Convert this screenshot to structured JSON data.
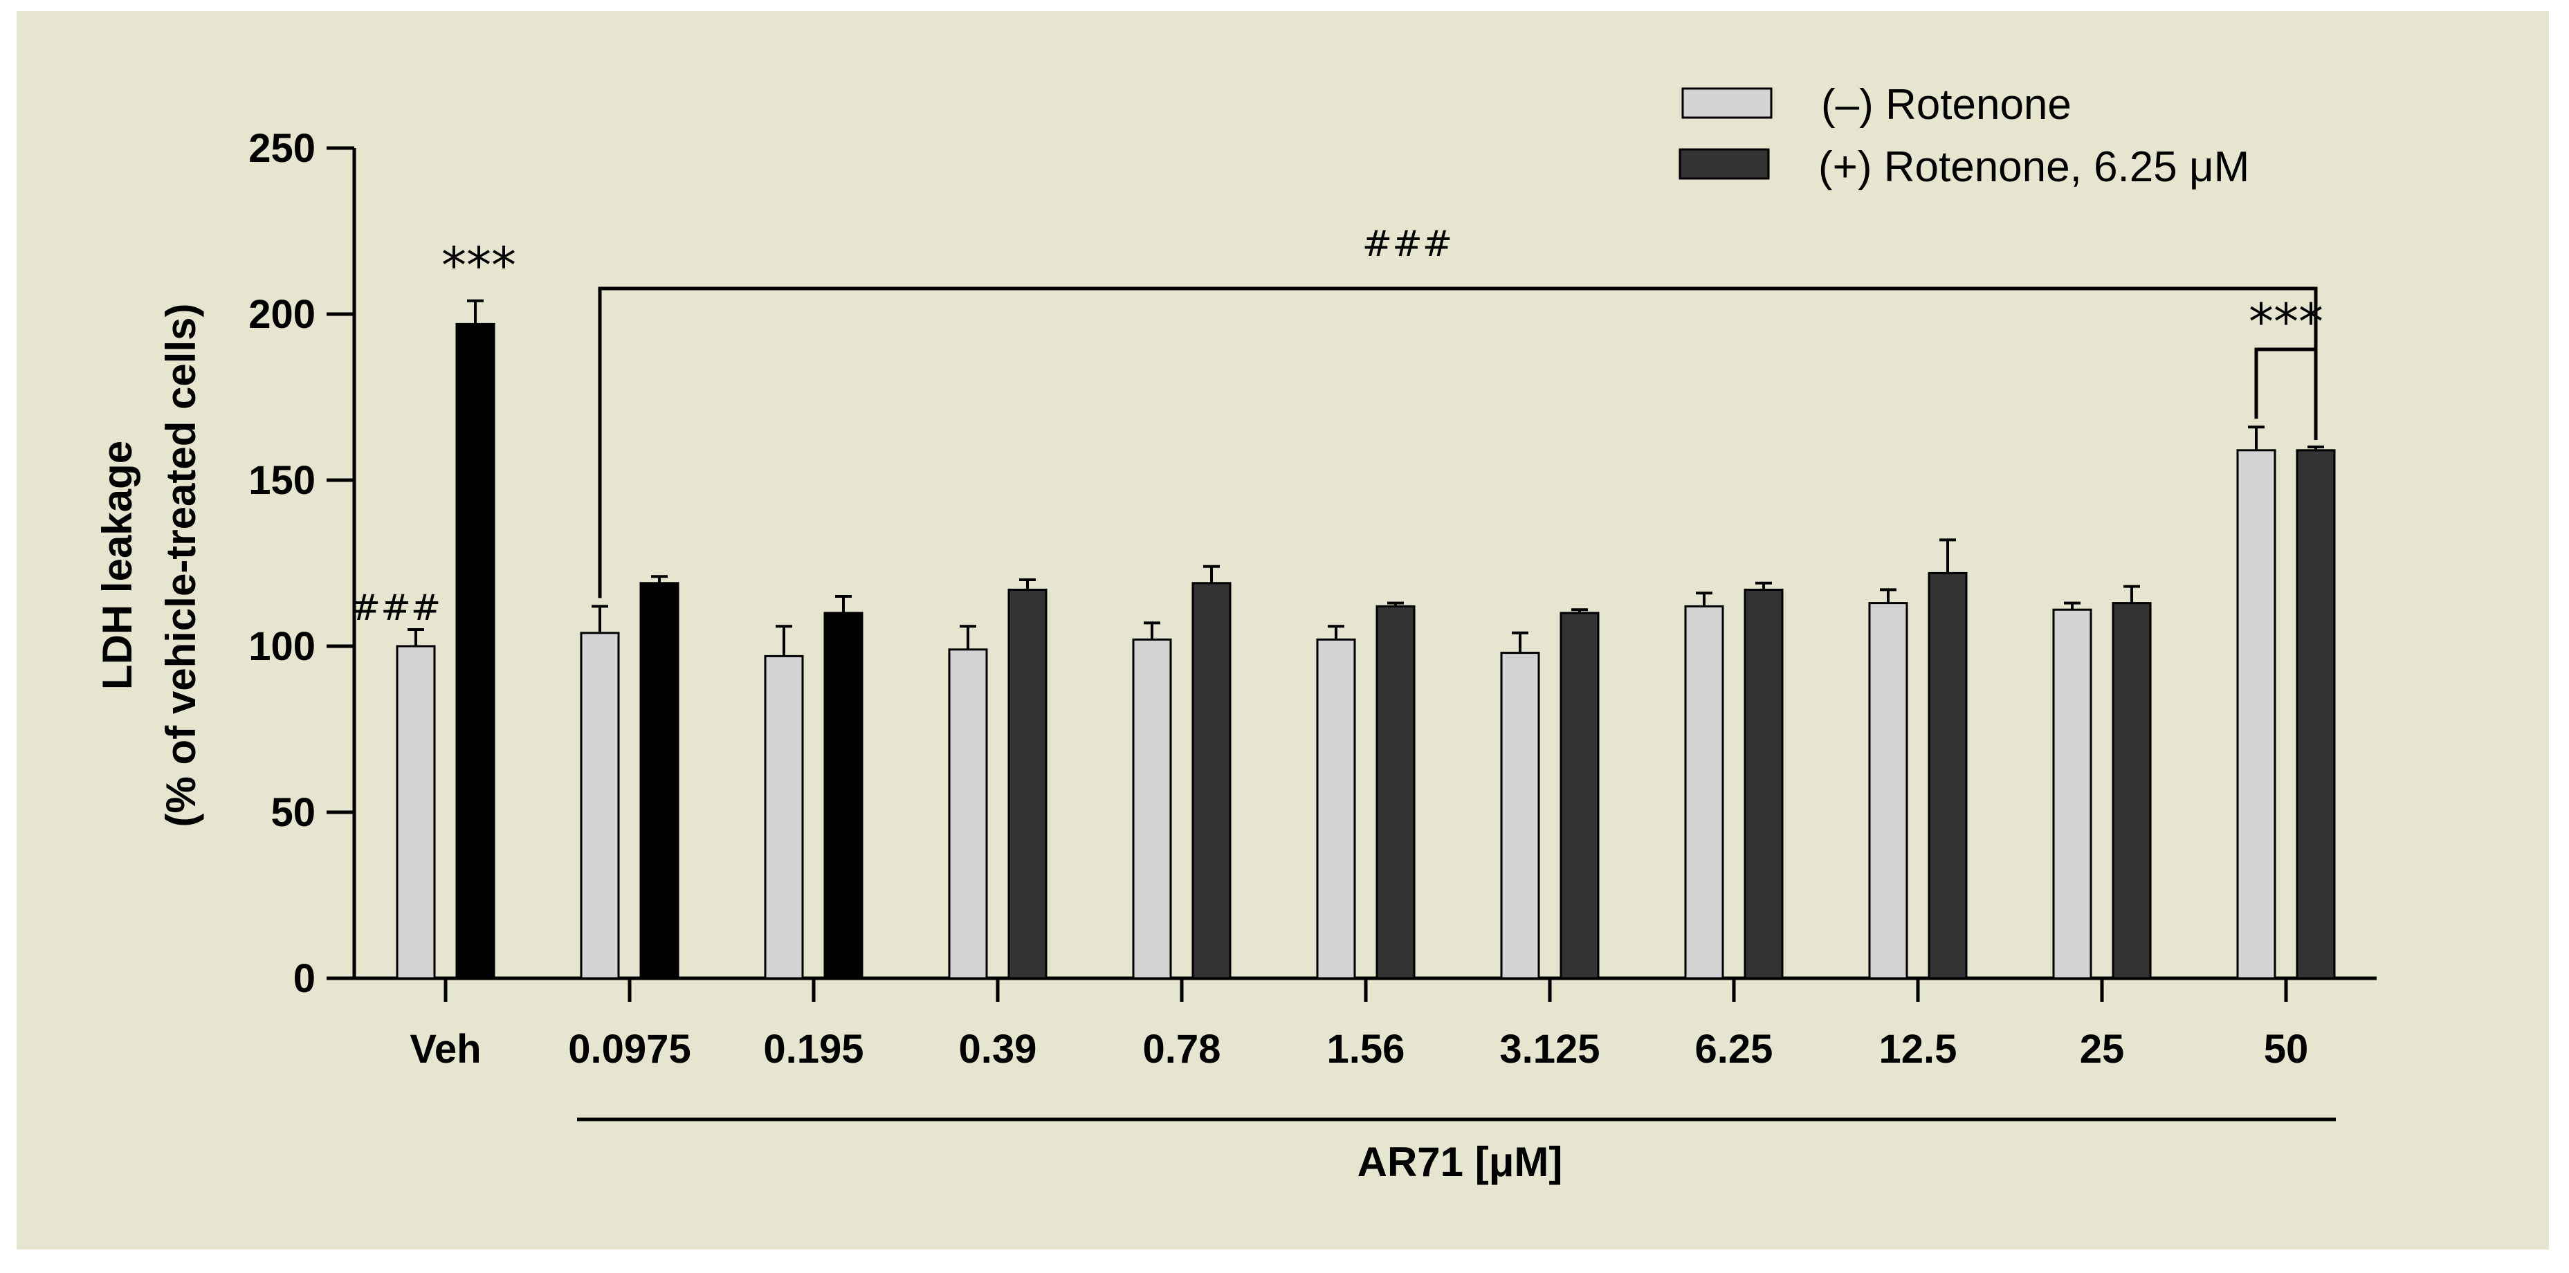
{
  "chart_data": {
    "type": "bar",
    "categories": [
      "Veh",
      "0.0975",
      "0.195",
      "0.39",
      "0.78",
      "1.56",
      "3.125",
      "6.25",
      "12.5",
      "25",
      "50"
    ],
    "series": [
      {
        "name": "(–) Rotenone",
        "values": [
          100,
          104,
          97,
          99,
          102,
          102,
          98,
          112,
          113,
          111,
          159
        ],
        "errors": [
          5,
          8,
          9,
          7,
          5,
          4,
          6,
          4,
          4,
          2,
          7
        ],
        "color": "#d3d3d3"
      },
      {
        "name": "(+) Rotenone, 6.25 μM",
        "values": [
          197,
          119,
          110,
          117,
          119,
          112,
          110,
          117,
          122,
          113,
          159
        ],
        "errors": [
          7,
          2,
          5,
          3,
          5,
          1,
          1,
          2,
          10,
          5,
          1
        ],
        "colors": [
          "#000000",
          "#000000",
          "#000000",
          "#333333",
          "#333333",
          "#333333",
          "#333333",
          "#333333",
          "#333333",
          "#333333",
          "#333333"
        ]
      }
    ],
    "ylabel_line1": "LDH leakage",
    "ylabel_line2": "(% of vehicle-treated cells)",
    "xlabel": "AR71 [μM]",
    "ylim": [
      0,
      250
    ],
    "yticks": [
      0,
      50,
      100,
      150,
      200,
      250
    ],
    "grid": false,
    "legend_position": "top-right",
    "annotations": {
      "veh_hash": "###",
      "veh_stars": "***",
      "bracket_hash": "###",
      "top_stars": "***"
    }
  }
}
